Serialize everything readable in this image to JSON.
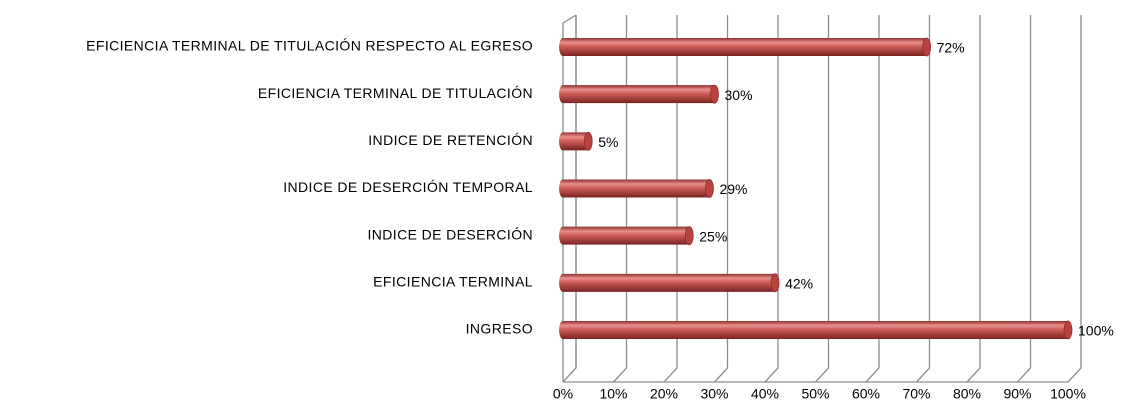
{
  "chart_data": {
    "type": "bar",
    "orientation": "horizontal",
    "categories": [
      "EFICIENCIA TERMINAL DE TITULACIÓN RESPECTO AL EGRESO",
      "EFICIENCIA TERMINAL DE TITULACIÓN",
      "INDICE DE RETENCIÓN",
      "INDICE DE DESERCIÓN TEMPORAL",
      "INDICE DE DESERCIÓN",
      "EFICIENCIA TERMINAL",
      "INGRESO"
    ],
    "values": [
      72,
      30,
      5,
      29,
      25,
      42,
      100
    ],
    "value_labels": [
      "72%",
      "30%",
      "5%",
      "29%",
      "25%",
      "42%",
      "100%"
    ],
    "color": "#c0504d",
    "xlim": [
      0,
      100
    ],
    "xticks": [
      {
        "value": 0,
        "label": "0%"
      },
      {
        "value": 10,
        "label": "10%"
      },
      {
        "value": 20,
        "label": "20%"
      },
      {
        "value": 30,
        "label": "30%"
      },
      {
        "value": 40,
        "label": "40%"
      },
      {
        "value": 50,
        "label": "50%"
      },
      {
        "value": 60,
        "label": "60%"
      },
      {
        "value": 70,
        "label": "70%"
      },
      {
        "value": 80,
        "label": "80%"
      },
      {
        "value": 90,
        "label": "90%"
      },
      {
        "value": 100,
        "label": "100%"
      }
    ],
    "grid": true
  }
}
